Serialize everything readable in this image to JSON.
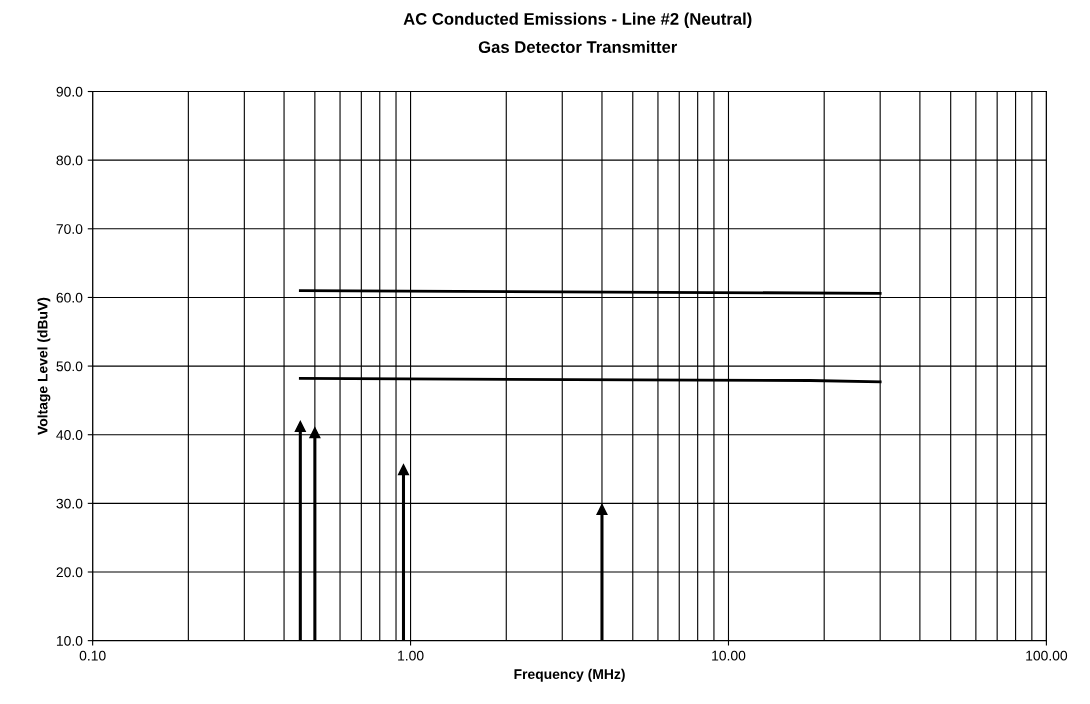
{
  "chart_data": {
    "type": "line",
    "title": "AC Conducted Emissions - Line #2 (Neutral)",
    "subtitle": "Gas Detector Transmitter",
    "xlabel": "Frequency (MHz)",
    "ylabel": "Voltage Level (dBuV)",
    "log": "x",
    "grid": true,
    "xlim": [
      0.1,
      100
    ],
    "xticks": [
      {
        "value": 0.1,
        "label": "0.10"
      },
      {
        "value": 1,
        "label": "1.00"
      },
      {
        "value": 10,
        "label": "10.00"
      },
      {
        "value": 100,
        "label": "100.00"
      }
    ],
    "ylim": [
      10,
      90
    ],
    "yticks": [
      {
        "value": 10,
        "label": "10.0"
      },
      {
        "value": 20,
        "label": "20.0"
      },
      {
        "value": 30,
        "label": "30.0"
      },
      {
        "value": 40,
        "label": "40.0"
      },
      {
        "value": 50,
        "label": "50.0"
      },
      {
        "value": 60,
        "label": "60.0"
      },
      {
        "value": 70,
        "label": "70.0"
      },
      {
        "value": 80,
        "label": "80.0"
      },
      {
        "value": 90,
        "label": "90.0"
      }
    ],
    "series": [
      {
        "color": "#000000",
        "x": [
          0.45,
          30
        ],
        "values": [
          61.0,
          60.6
        ]
      },
      {
        "color": "#000000",
        "x": [
          0.45,
          18,
          30
        ],
        "values": [
          48.2,
          47.9,
          47.7
        ]
      },
      {
        "type": "lollipop",
        "marker": "triangle",
        "color": "#000000",
        "x": [
          0.45,
          0.5,
          0.95,
          4.0
        ],
        "values": [
          41.2,
          40.3,
          34.9,
          29.1
        ]
      }
    ]
  }
}
